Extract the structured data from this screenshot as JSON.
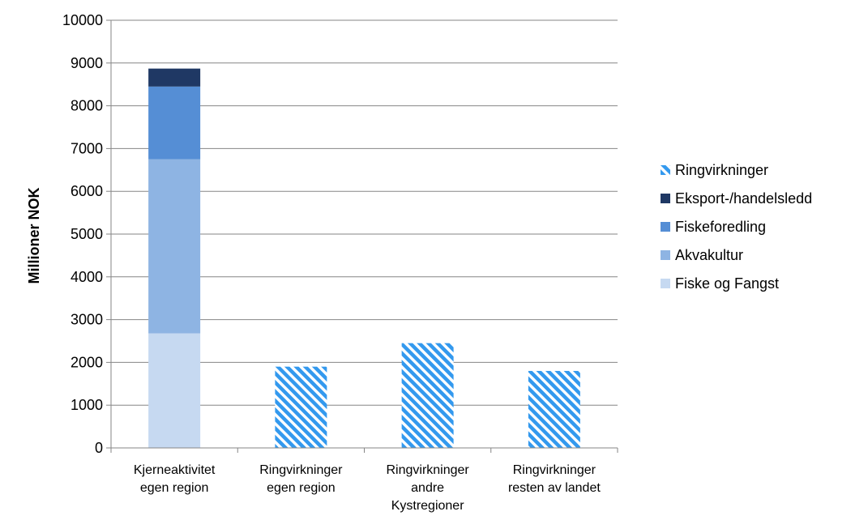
{
  "chart_data": {
    "type": "bar",
    "stacked": true,
    "title": "",
    "xlabel": "",
    "ylabel": "Millioner NOK",
    "ylim": [
      0,
      10000
    ],
    "y_ticks": [
      0,
      1000,
      2000,
      3000,
      4000,
      5000,
      6000,
      7000,
      8000,
      9000,
      10000
    ],
    "grid": true,
    "legend_position": "right",
    "categories": [
      [
        "Kjerneaktivitet",
        "egen region"
      ],
      [
        "Ringvirkninger",
        "egen region"
      ],
      [
        "Ringvirkninger",
        "andre",
        "Kystregioner"
      ],
      [
        "Ringvirkninger",
        "resten av landet"
      ]
    ],
    "series": [
      {
        "name": "Fiske og Fangst",
        "color": "#c6d9f1",
        "pattern": "solid",
        "values": [
          2680,
          0,
          0,
          0
        ]
      },
      {
        "name": "Akvakultur",
        "color": "#8eb4e3",
        "pattern": "solid",
        "values": [
          4070,
          0,
          0,
          0
        ]
      },
      {
        "name": "Fiskeforedling",
        "color": "#558ed5",
        "pattern": "solid",
        "values": [
          1700,
          0,
          0,
          0
        ]
      },
      {
        "name": "Eksport-/handelsledd",
        "color": "#1f3864",
        "pattern": "solid",
        "values": [
          420,
          0,
          0,
          0
        ]
      },
      {
        "name": "Ringvirkninger",
        "color": "#3399ee",
        "pattern": "diagonal-hatch",
        "values": [
          0,
          1900,
          2450,
          1800
        ]
      }
    ],
    "legend_order": [
      "Ringvirkninger",
      "Eksport-/handelsledd",
      "Fiskeforedling",
      "Akvakultur",
      "Fiske og Fangst"
    ],
    "colors": {
      "axis": "#868686",
      "grid": "#868686"
    }
  }
}
